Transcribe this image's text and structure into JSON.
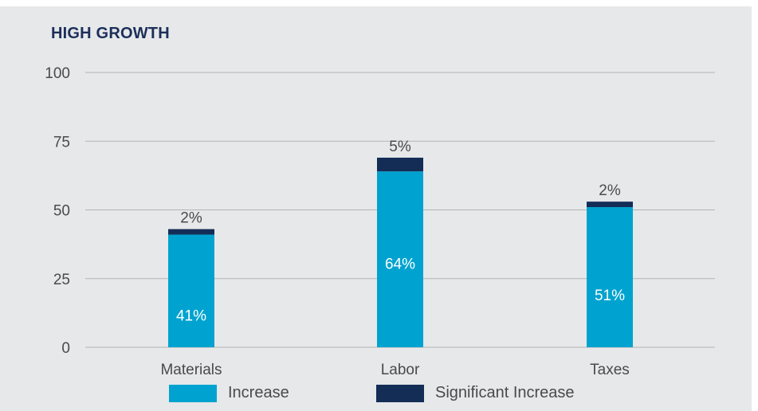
{
  "chart_data": {
    "type": "bar",
    "stacked": true,
    "title": "HIGH GROWTH",
    "categories": [
      "Materials",
      "Labor",
      "Taxes"
    ],
    "series": [
      {
        "name": "Increase",
        "values": [
          41,
          64,
          51
        ],
        "labels": [
          "41%",
          "64%",
          "51%"
        ],
        "color": "#00a3cf"
      },
      {
        "name": "Significant Increase",
        "values": [
          2,
          5,
          2
        ],
        "labels": [
          "2%",
          "5%",
          "2%"
        ],
        "color": "#132d57"
      }
    ],
    "ylim": [
      0,
      100
    ],
    "yticks": [
      0,
      25,
      50,
      75,
      100
    ],
    "grid": true,
    "legend_position": "bottom"
  },
  "colors": {
    "panel_background": "#e7e8ea",
    "title": "#1c2f5a",
    "gridline": "#b4b4b4",
    "text": "#4a4a4a"
  }
}
